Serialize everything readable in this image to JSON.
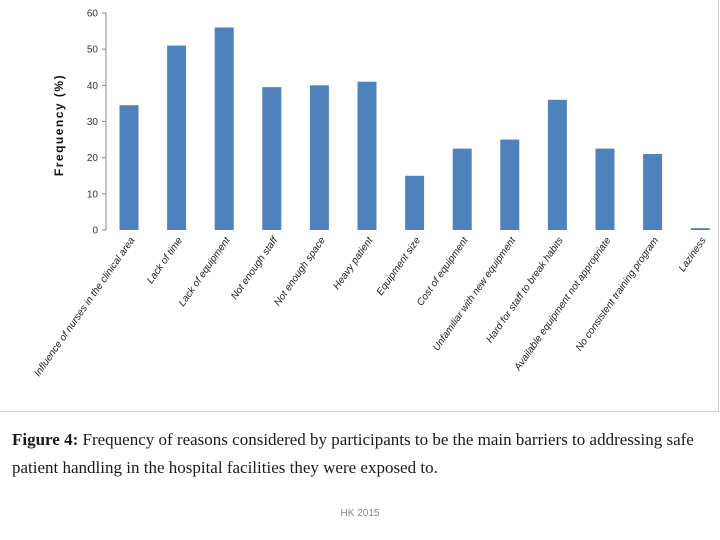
{
  "chart_data": {
    "type": "bar",
    "title": "",
    "xlabel": "",
    "ylabel": "Frequency (%)",
    "ylim": [
      0,
      60
    ],
    "yticks": [
      0,
      10,
      20,
      30,
      40,
      50,
      60
    ],
    "grid": false,
    "bar_color": "#4f81bd",
    "categories": [
      "Influence of nurses in the clinical area",
      "Lack of time",
      "Lack of equipment",
      "Not enough staff",
      "Not enough space",
      "Heavy patient",
      "Equipment size",
      "Cost of equipment",
      "Unfamiliar with new equipment",
      "Hard for staff to break habits",
      "Available equipment not appropriate",
      "No consistent training program",
      "Laziness"
    ],
    "values": [
      34.5,
      51,
      56,
      39.5,
      40,
      41,
      15,
      22.5,
      25,
      36,
      22.5,
      21,
      0.5
    ]
  },
  "caption": {
    "label": "Figure 4:",
    "text": " Frequency of reasons considered by participants to be the main barriers to addressing safe patient handling in the hospital facilities they were exposed to."
  },
  "footer": "HK 2015"
}
